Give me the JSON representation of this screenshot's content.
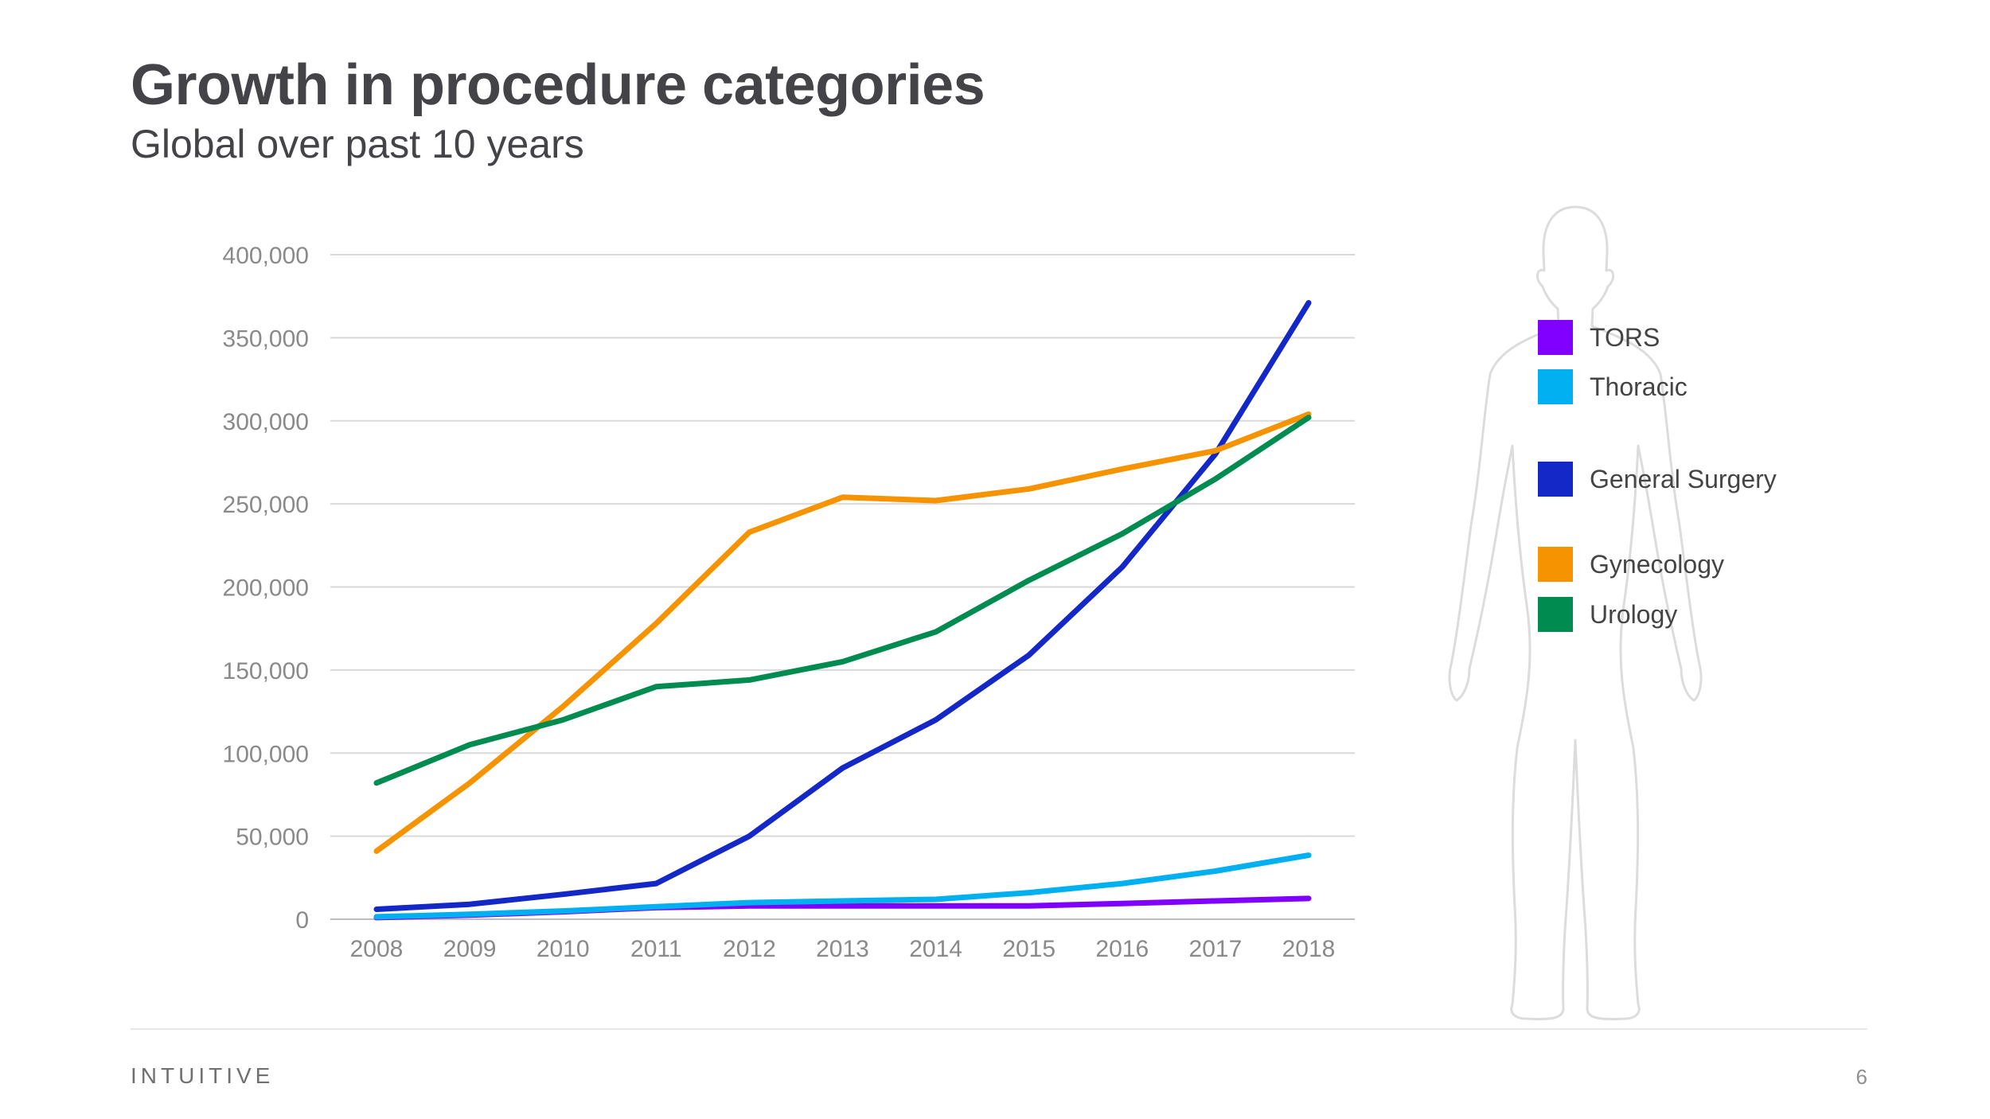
{
  "slide": {
    "title": "Growth in procedure categories",
    "subtitle": "Global over past 10 years",
    "brand": "INTUITIVE",
    "page_number": "6"
  },
  "chart_data": {
    "type": "line",
    "title": "",
    "xlabel": "",
    "ylabel": "",
    "x": [
      "2008",
      "2009",
      "2010",
      "2011",
      "2012",
      "2013",
      "2014",
      "2015",
      "2016",
      "2017",
      "2018"
    ],
    "ylim": [
      0,
      400000
    ],
    "yticks": [
      0,
      50000,
      100000,
      150000,
      200000,
      250000,
      300000,
      350000,
      400000
    ],
    "ytick_labels": [
      "0",
      "50,000",
      "100,000",
      "150,000",
      "200,000",
      "250,000",
      "300,000",
      "350,000",
      "400,000"
    ],
    "grid": true,
    "legend_position": "right",
    "series": [
      {
        "name": "TORS",
        "color": "#8000ff",
        "values": [
          1000,
          2500,
          4500,
          7000,
          8000,
          8000,
          8000,
          8000,
          9500,
          11000,
          12500
        ]
      },
      {
        "name": "Thoracic",
        "color": "#00b0f0",
        "values": [
          1500,
          3000,
          5000,
          7500,
          10000,
          11000,
          12000,
          16000,
          21500,
          29000,
          38500
        ]
      },
      {
        "name": "General Surgery",
        "color": "#1428c8",
        "values": [
          6000,
          9000,
          15000,
          21500,
          50000,
          91000,
          120000,
          159000,
          212000,
          280000,
          371000
        ]
      },
      {
        "name": "Gynecology",
        "color": "#f59300",
        "values": [
          41000,
          82000,
          128000,
          178000,
          233000,
          254000,
          252000,
          259000,
          271000,
          282000,
          304000
        ]
      },
      {
        "name": "Urology",
        "color": "#008c50",
        "values": [
          82000,
          105000,
          120000,
          140000,
          144000,
          155000,
          173000,
          204000,
          232000,
          265000,
          302000
        ]
      }
    ]
  }
}
